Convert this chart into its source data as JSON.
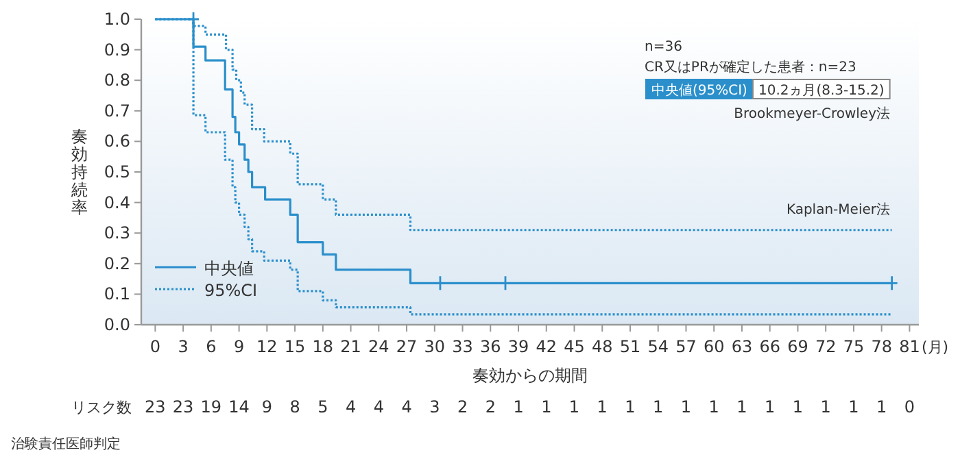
{
  "chart_data": {
    "type": "step",
    "xlabel": "奏効からの期間",
    "ylabel": "奏効持続率",
    "xlim": [
      -1.5,
      82
    ],
    "ylim": [
      0,
      1
    ],
    "xticks": [
      0,
      3,
      6,
      9,
      12,
      15,
      18,
      21,
      24,
      27,
      30,
      33,
      36,
      39,
      42,
      45,
      48,
      51,
      54,
      57,
      60,
      63,
      66,
      69,
      72,
      75,
      78,
      81
    ],
    "yticks": [
      {
        "value": 0,
        "label": "0.0"
      },
      {
        "value": 0.1,
        "label": "0.1"
      },
      {
        "value": 0.2,
        "label": "0.2"
      },
      {
        "value": 0.3,
        "label": "0.3"
      },
      {
        "value": 0.4,
        "label": "0.4"
      },
      {
        "value": 0.5,
        "label": "0.5"
      },
      {
        "value": 0.6,
        "label": "0.6"
      },
      {
        "value": 0.7,
        "label": "0.7"
      },
      {
        "value": 0.8,
        "label": "0.8"
      },
      {
        "value": 0.9,
        "label": "0.9"
      },
      {
        "value": 1,
        "label": "1.0"
      }
    ],
    "grid": false,
    "legend": "bottom left",
    "series": [
      {
        "name": "中央値",
        "color": "#2a8fcb",
        "line_style": "solid",
        "x": [
          0,
          4.1,
          5.4,
          7.5,
          8.3,
          8.6,
          9.0,
          9.6,
          10.0,
          10.4,
          11.8,
          14.5,
          15.3,
          18.0,
          19.4,
          27.4,
          79.1
        ],
        "values": [
          1,
          0.91,
          0.865,
          0.77,
          0.68,
          0.63,
          0.59,
          0.54,
          0.5,
          0.45,
          0.41,
          0.36,
          0.27,
          0.23,
          0.18,
          0.136,
          0.136
        ]
      },
      {
        "name": "95%CI",
        "color": "#2a8fcb",
        "line_style": "dotted",
        "x": [
          0,
          4.1,
          5.4,
          7.6,
          8.3,
          8.7,
          9.2,
          9.6,
          10.4,
          11.7,
          14.5,
          15.3,
          18.0,
          19.4,
          27.4,
          79.1
        ],
        "values": [
          1,
          0.978,
          0.95,
          0.9,
          0.835,
          0.8,
          0.76,
          0.72,
          0.64,
          0.6,
          0.56,
          0.46,
          0.41,
          0.36,
          0.31,
          0.31
        ]
      },
      {
        "color": "#2a8fcb",
        "line_style": "dotted",
        "x": [
          0,
          4.1,
          5.4,
          7.5,
          8.3,
          8.6,
          9.0,
          9.6,
          10.0,
          10.4,
          11.7,
          14.5,
          15.3,
          18.0,
          19.4,
          27.4,
          79.1
        ],
        "values": [
          1,
          0.686,
          0.63,
          0.54,
          0.45,
          0.4,
          0.36,
          0.32,
          0.28,
          0.24,
          0.21,
          0.18,
          0.11,
          0.08,
          0.057,
          0.034,
          0.034
        ]
      },
      {
        "type": "scatter",
        "marker": "cross",
        "color": "#2a8fcb",
        "x": [
          4.1,
          30.6,
          37.6,
          79.1
        ],
        "values": [
          1,
          0.136,
          0.136,
          0.136
        ]
      }
    ],
    "annotations": [
      "n=36",
      "CR又はPRが確定した患者：n=23",
      "中央値(95%CI)",
      "10.2ヵ月(8.3-15.2)",
      "Brookmeyer-Crowley法",
      "Kaplan-Meier法",
      "(月)",
      "リスク数",
      "治験責任医師判定",
      "23",
      "23",
      "19",
      "14",
      "9",
      "8",
      "5",
      "4",
      "4",
      "4",
      "3",
      "2",
      "2",
      "1",
      "1",
      "1",
      "1",
      "1",
      "1",
      "1",
      "1",
      "1",
      "1",
      "1",
      "1",
      "1",
      "1",
      "0"
    ]
  }
}
